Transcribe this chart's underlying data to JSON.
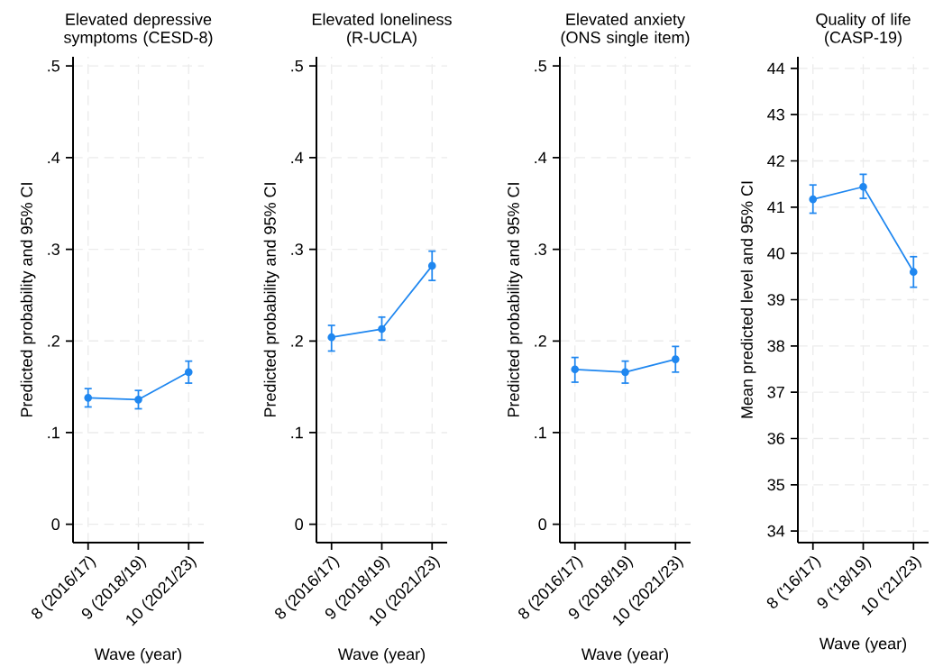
{
  "chart_data": [
    {
      "type": "line",
      "title": "Elevated depressive symptoms (CESD-8)",
      "xlabel": "Wave (year)",
      "ylabel": "Predicted probability and 95% CI",
      "categories": [
        "8 (2016/17)",
        "9 (2018/19)",
        "10 (2021/23)"
      ],
      "series": [
        {
          "color": "#1f87f0",
          "values": [
            0.138,
            0.136,
            0.166
          ],
          "errors": [
            [
              0.128,
              0.148
            ],
            [
              0.126,
              0.146
            ],
            [
              0.154,
              0.178
            ]
          ]
        }
      ],
      "ylim": [
        -0.02,
        0.51
      ],
      "yticks": [
        0,
        {
          "value": 0.1,
          "label": ".1"
        },
        {
          "value": 0.2,
          "label": ".2"
        },
        {
          "value": 0.3,
          "label": ".3"
        },
        {
          "value": 0.4,
          "label": ".4"
        },
        {
          "value": 0.5,
          "label": ".5"
        }
      ],
      "grid": true,
      "marker": "circle"
    },
    {
      "type": "line",
      "title": "Elevated loneliness (R-UCLA)",
      "xlabel": "Wave (year)",
      "ylabel": "Predicted probability and 95% CI",
      "categories": [
        "8 (2016/17)",
        "9 (2018/19)",
        "10 (2021/23)"
      ],
      "series": [
        {
          "color": "#1f87f0",
          "values": [
            0.204,
            0.213,
            0.282
          ],
          "errors": [
            [
              0.189,
              0.217
            ],
            [
              0.201,
              0.226
            ],
            [
              0.266,
              0.298
            ]
          ]
        }
      ],
      "ylim": [
        -0.02,
        0.51
      ],
      "yticks": [
        0,
        {
          "value": 0.1,
          "label": ".1"
        },
        {
          "value": 0.2,
          "label": ".2"
        },
        {
          "value": 0.3,
          "label": ".3"
        },
        {
          "value": 0.4,
          "label": ".4"
        },
        {
          "value": 0.5,
          "label": ".5"
        }
      ],
      "grid": true,
      "marker": "circle"
    },
    {
      "type": "line",
      "title": "Elevated anxiety (ONS single item)",
      "xlabel": "Wave (year)",
      "ylabel": "Predicted probability and 95% CI",
      "categories": [
        "8 (2016/17)",
        "9 (2018/19)",
        "10 (2021/23)"
      ],
      "series": [
        {
          "color": "#1f87f0",
          "values": [
            0.169,
            0.166,
            0.18
          ],
          "errors": [
            [
              0.155,
              0.182
            ],
            [
              0.154,
              0.178
            ],
            [
              0.166,
              0.194
            ]
          ]
        }
      ],
      "ylim": [
        -0.02,
        0.51
      ],
      "yticks": [
        0,
        {
          "value": 0.1,
          "label": ".1"
        },
        {
          "value": 0.2,
          "label": ".2"
        },
        {
          "value": 0.3,
          "label": ".3"
        },
        {
          "value": 0.4,
          "label": ".4"
        },
        {
          "value": 0.5,
          "label": ".5"
        }
      ],
      "grid": true,
      "marker": "circle"
    },
    {
      "type": "line",
      "title": "Quality of life (CASP-19)",
      "xlabel": "Wave (year)",
      "ylabel": "Mean predicted level and 95% CI",
      "categories": [
        "8 ('16/17)",
        "9 ('18/19)",
        "10 ('21/23)"
      ],
      "series": [
        {
          "color": "#1f87f0",
          "values": [
            41.17,
            41.44,
            39.6
          ],
          "errors": [
            [
              40.87,
              41.48
            ],
            [
              41.19,
              41.71
            ],
            [
              39.27,
              39.93
            ]
          ]
        }
      ],
      "ylim": [
        33.75,
        44.25
      ],
      "yticks": [
        34,
        35,
        36,
        37,
        38,
        39,
        40,
        41,
        42,
        43,
        44
      ],
      "grid": true,
      "marker": "circle"
    }
  ]
}
